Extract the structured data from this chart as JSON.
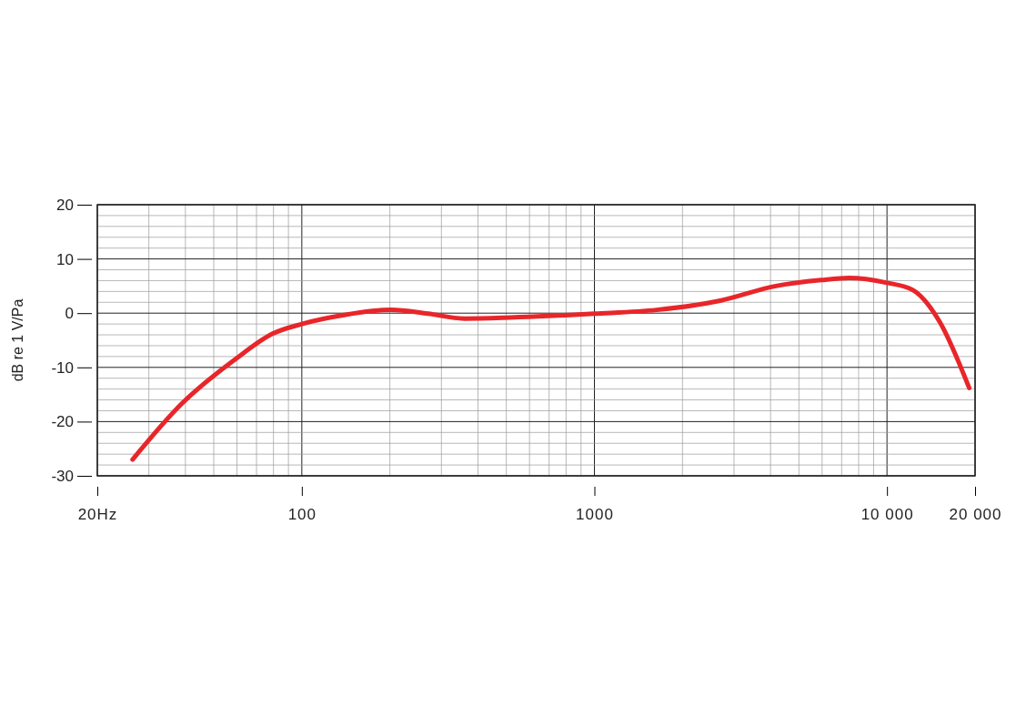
{
  "chart_data": {
    "type": "line",
    "ylabel": "dB re 1 V/Pa",
    "log": "x",
    "xlim": [
      20,
      20000
    ],
    "ylim": [
      -30,
      20
    ],
    "xticks": [
      {
        "value": 20,
        "label": "20Hz"
      },
      {
        "value": 30,
        "label": null
      },
      {
        "value": 40,
        "label": null
      },
      {
        "value": 50,
        "label": null
      },
      {
        "value": 60,
        "label": null
      },
      {
        "value": 70,
        "label": null
      },
      {
        "value": 80,
        "label": null
      },
      {
        "value": 90,
        "label": null
      },
      100,
      {
        "value": 200,
        "label": null
      },
      {
        "value": 300,
        "label": null
      },
      {
        "value": 400,
        "label": null
      },
      {
        "value": 500,
        "label": null
      },
      {
        "value": 600,
        "label": null
      },
      {
        "value": 700,
        "label": null
      },
      {
        "value": 800,
        "label": null
      },
      {
        "value": 900,
        "label": null
      },
      1000,
      {
        "value": 2000,
        "label": null
      },
      {
        "value": 3000,
        "label": null
      },
      {
        "value": 4000,
        "label": null
      },
      {
        "value": 5000,
        "label": null
      },
      {
        "value": 6000,
        "label": null
      },
      {
        "value": 7000,
        "label": null
      },
      {
        "value": 8000,
        "label": null
      },
      {
        "value": 9000,
        "label": null
      },
      {
        "value": 10000,
        "label": "10 000"
      },
      {
        "value": 20000,
        "label": "20 000"
      }
    ],
    "yticks": [
      -30,
      {
        "value": -28,
        "label": null
      },
      {
        "value": -26,
        "label": null
      },
      {
        "value": -24,
        "label": null
      },
      {
        "value": -22,
        "label": null
      },
      -20,
      {
        "value": -18,
        "label": null
      },
      {
        "value": -16,
        "label": null
      },
      {
        "value": -14,
        "label": null
      },
      {
        "value": -12,
        "label": null
      },
      -10,
      {
        "value": -8,
        "label": null
      },
      {
        "value": -6,
        "label": null
      },
      {
        "value": -4,
        "label": null
      },
      {
        "value": -2,
        "label": null
      },
      0,
      {
        "value": 2,
        "label": null
      },
      {
        "value": 4,
        "label": null
      },
      {
        "value": 6,
        "label": null
      },
      {
        "value": 8,
        "label": null
      },
      10,
      {
        "value": 12,
        "label": null
      },
      {
        "value": 14,
        "label": null
      },
      {
        "value": 16,
        "label": null
      },
      {
        "value": 18,
        "label": null
      },
      20
    ],
    "grid": true,
    "marker": "none",
    "line_style": "solid",
    "x": [
      26.4,
      38.7,
      59.6,
      79.4,
      100,
      141,
      202,
      270,
      360,
      516,
      1000,
      1632,
      2690,
      4170,
      5960,
      7410,
      10000,
      12230,
      15140,
      19100
    ],
    "series": [
      {
        "color": "#e8262a",
        "values": [
          -27,
          -16.8,
          -8.4,
          -3.8,
          -2,
          -0.3,
          0.6,
          -0.1,
          -1,
          -0.8,
          -0.1,
          0.6,
          2.3,
          5,
          6.1,
          6.5,
          5.6,
          4.3,
          -1.6,
          -13.8
        ]
      }
    ]
  }
}
